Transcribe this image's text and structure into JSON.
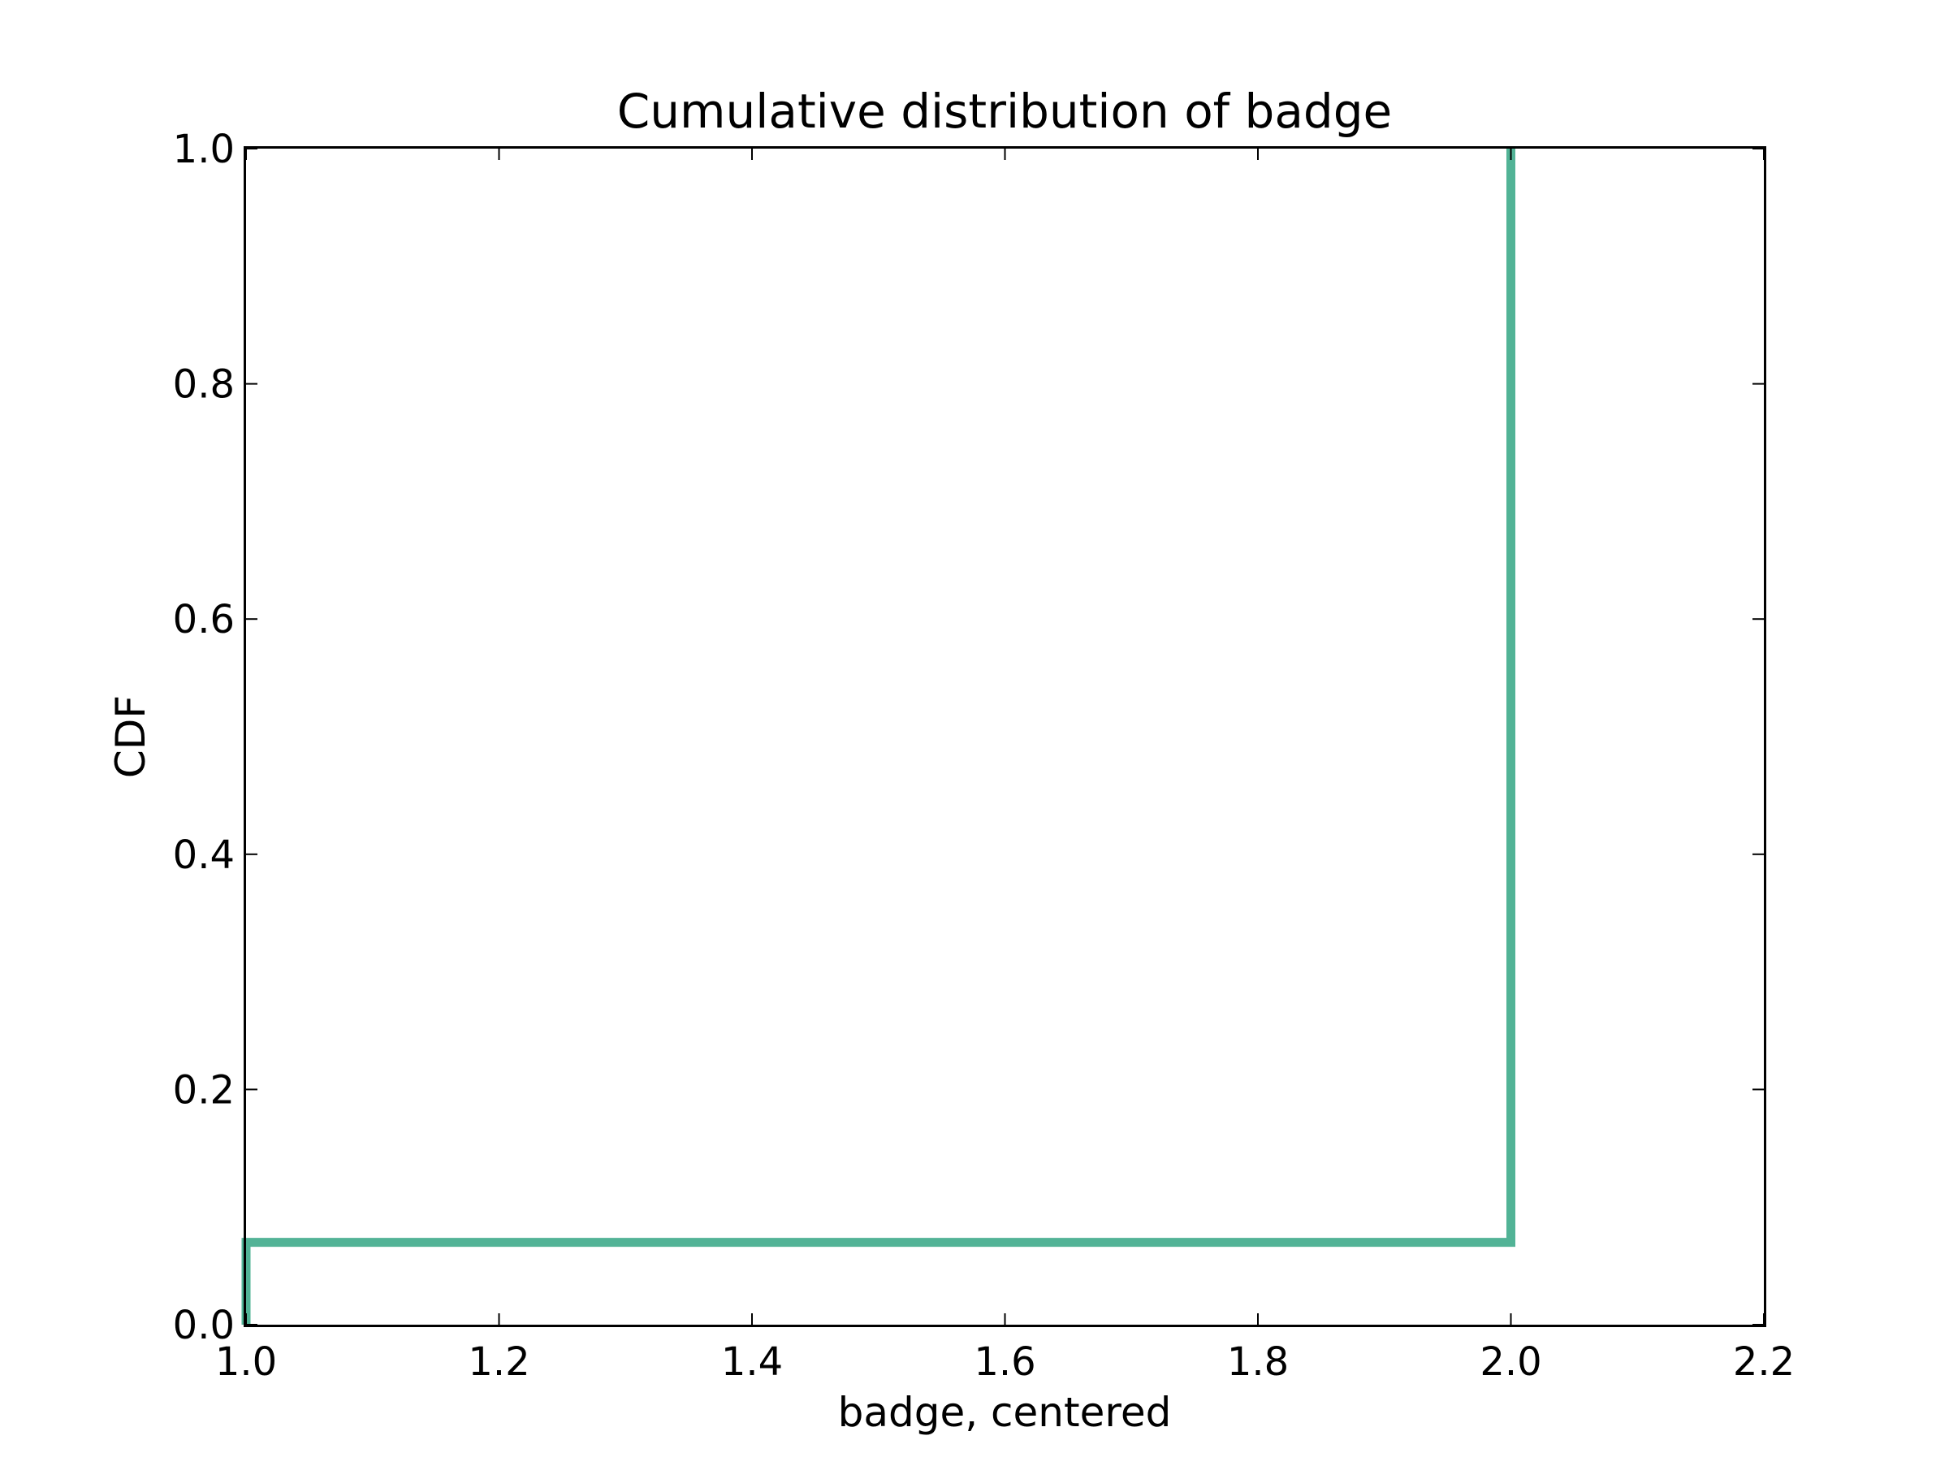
{
  "chart_data": {
    "type": "line",
    "title": "Cumulative distribution of badge",
    "xlabel": "badge, centered",
    "ylabel": "CDF",
    "xlim": [
      1.0,
      2.2
    ],
    "ylim": [
      0.0,
      1.0
    ],
    "xticks": [
      "1.0",
      "1.2",
      "1.4",
      "1.6",
      "1.8",
      "2.0",
      "2.2"
    ],
    "yticks": [
      "0.0",
      "0.2",
      "0.4",
      "0.6",
      "0.8",
      "1.0"
    ],
    "grid": false,
    "step": true,
    "series": [
      {
        "color": "#52b396",
        "x": [
          1.0,
          1.0,
          2.0,
          2.0
        ],
        "y": [
          0.0,
          0.07,
          0.07,
          1.0
        ]
      }
    ]
  }
}
